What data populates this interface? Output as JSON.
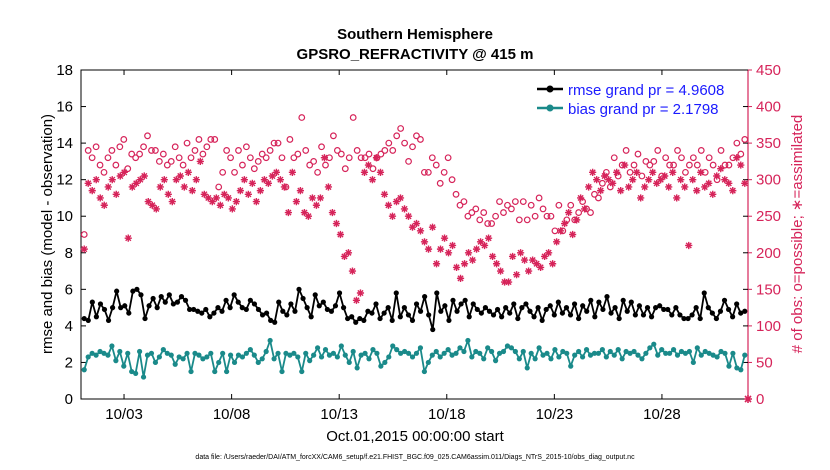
{
  "chart_data": {
    "type": "line",
    "title": "Southern Hemisphere",
    "subtitle": "GPSRO_REFRACTIVITY @ 415 m",
    "xlabel": "Oct.01,2015 00:00:00 start",
    "ylabel": "rmse and bias (model - observation)",
    "y2label": "# of obs: o=possible; ∗=assimilated",
    "xlim": [
      1.0,
      32.0
    ],
    "ylim": [
      0,
      18
    ],
    "y2lim": [
      0,
      450
    ],
    "x_ticks": [
      3,
      8,
      13,
      18,
      23,
      28
    ],
    "x_tick_labels": [
      "10/03",
      "10/08",
      "10/13",
      "10/18",
      "10/23",
      "10/28"
    ],
    "y_ticks": [
      0,
      2,
      4,
      6,
      8,
      10,
      12,
      14,
      16,
      18
    ],
    "y2_ticks": [
      0,
      50,
      100,
      150,
      200,
      250,
      300,
      350,
      400,
      450
    ],
    "legend_position": "top-right",
    "footnote": "data file: /Users/raeder/DAI/ATM_forcXX/CAM6_setup/f.e21.FHIST_BGC.f09_025.CAM6assim.011/Diags_NTrS_2015-10/obs_diag_output.nc",
    "colors": {
      "rmse": "#000000",
      "bias": "#1a8a8a",
      "obs": "#d6245a",
      "legend_text": "#1a1aff"
    },
    "series": [
      {
        "name": "rmse grand pr = 4.9608",
        "axis": "left",
        "values": [
          4.4,
          4.3,
          5.3,
          4.5,
          5.2,
          4.9,
          4.3,
          5.0,
          5.9,
          5.0,
          5.1,
          4.7,
          5.9,
          6.0,
          5.7,
          4.4,
          5.1,
          5.5,
          5.0,
          5.6,
          5.3,
          5.7,
          5.2,
          5.3,
          5.6,
          5.4,
          4.9,
          4.9,
          4.8,
          4.7,
          4.9,
          4.5,
          4.7,
          5.0,
          4.8,
          5.4,
          5.0,
          5.7,
          5.3,
          5.0,
          4.9,
          5.4,
          5.2,
          4.9,
          4.6,
          4.7,
          4.3,
          4.2,
          5.3,
          4.8,
          4.6,
          5.2,
          4.8,
          6.0,
          5.5,
          5.0,
          4.5,
          5.7,
          5.1,
          5.3,
          4.9,
          4.8,
          5.1,
          5.8,
          5.0,
          4.4,
          4.5,
          4.2,
          4.4,
          4.3,
          4.8,
          4.7,
          5.2,
          4.4,
          4.7,
          5.0,
          4.3,
          5.8,
          4.5,
          5.0,
          4.6,
          4.3,
          5.2,
          4.8,
          5.6,
          4.6,
          3.8,
          5.8,
          4.8,
          5.1,
          4.3,
          5.4,
          4.8,
          5.2,
          5.4,
          4.5,
          5.2,
          4.9,
          4.7,
          5.0,
          4.8,
          4.6,
          4.9,
          4.5,
          5.0,
          4.7,
          5.2,
          4.4,
          5.0,
          5.2,
          4.8,
          4.5,
          5.0,
          4.3,
          4.9,
          5.1,
          4.6,
          5.3,
          4.7,
          5.0,
          4.6,
          5.2,
          4.4,
          5.1,
          4.8,
          5.4,
          4.5,
          5.3,
          4.9,
          5.6,
          4.7,
          5.0,
          4.4,
          5.4,
          4.8,
          5.3,
          4.6,
          5.1,
          4.6,
          5.0,
          4.5,
          5.0,
          5.1,
          4.9,
          4.9,
          4.6,
          5.0,
          4.6,
          4.4,
          4.4,
          4.6,
          5.0,
          4.4,
          5.8,
          5.0,
          4.7,
          4.4,
          4.8,
          5.4,
          4.9,
          4.5,
          5.2,
          4.7,
          4.8
        ]
      },
      {
        "name": "bias grand pr = 2.1798",
        "axis": "left",
        "values": [
          1.6,
          2.3,
          2.5,
          2.4,
          2.6,
          2.5,
          2.4,
          2.9,
          2.1,
          2.6,
          1.8,
          2.5,
          1.5,
          1.4,
          2.6,
          1.2,
          2.4,
          2.5,
          2.0,
          2.3,
          2.7,
          2.5,
          2.4,
          1.9,
          2.3,
          2.2,
          2.5,
          1.5,
          2.5,
          2.4,
          2.2,
          2.3,
          2.5,
          1.5,
          2.0,
          2.5,
          1.5,
          2.4,
          2.0,
          2.4,
          2.3,
          2.5,
          2.7,
          2.4,
          2.0,
          2.2,
          2.6,
          3.2,
          2.2,
          2.5,
          1.5,
          2.5,
          2.4,
          2.5,
          2.3,
          1.5,
          2.5,
          2.1,
          2.4,
          2.8,
          2.3,
          2.7,
          2.4,
          2.5,
          2.3,
          2.9,
          2.4,
          2.0,
          2.6,
          1.7,
          2.4,
          2.5,
          2.2,
          2.7,
          2.5,
          1.8,
          2.0,
          2.3,
          2.9,
          2.7,
          2.5,
          2.6,
          2.5,
          2.3,
          2.5,
          2.8,
          1.5,
          2.0,
          2.4,
          2.6,
          2.3,
          2.5,
          2.7,
          2.4,
          2.5,
          2.8,
          2.6,
          3.2,
          2.3,
          2.6,
          2.5,
          2.2,
          2.8,
          2.6,
          2.1,
          2.5,
          2.6,
          2.9,
          2.8,
          2.6,
          2.2,
          2.6,
          1.7,
          2.5,
          2.2,
          2.8,
          2.4,
          2.5,
          2.2,
          2.7,
          2.3,
          2.6,
          2.5,
          1.8,
          2.4,
          2.6,
          2.3,
          2.7,
          2.4,
          2.5,
          2.5,
          2.7,
          2.3,
          2.6,
          2.4,
          2.7,
          2.2,
          2.6,
          2.5,
          2.6,
          2.4,
          2.2,
          2.5,
          2.8,
          3.0,
          2.4,
          2.7,
          2.5,
          2.5,
          2.7,
          2.4,
          2.6,
          2.5,
          2.6,
          2.0,
          2.8,
          2.4,
          2.6,
          2.5,
          2.4,
          2.3,
          2.6,
          2.5,
          1.8,
          2.5,
          1.7,
          1.6,
          2.4
        ]
      },
      {
        "name": "possible",
        "axis": "right",
        "marker": "o",
        "values": [
          225,
          340,
          330,
          345,
          320,
          310,
          330,
          340,
          320,
          345,
          355,
          315,
          335,
          330,
          335,
          345,
          360,
          340,
          340,
          325,
          335,
          320,
          325,
          345,
          330,
          320,
          350,
          330,
          340,
          355,
          335,
          345,
          355,
          355,
          290,
          310,
          340,
          330,
          310,
          340,
          320,
          345,
          330,
          315,
          325,
          335,
          330,
          340,
          350,
          350,
          330,
          290,
          355,
          330,
          335,
          385,
          340,
          320,
          325,
          310,
          345,
          320,
          330,
          360,
          340,
          335,
          315,
          330,
          385,
          340,
          330,
          330,
          335,
          315,
          330,
          335,
          340,
          350,
          340,
          360,
          370,
          350,
          325,
          345,
          360,
          355,
          310,
          310,
          330,
          320,
          295,
          310,
          330,
          300,
          280,
          265,
          270,
          250,
          255,
          260,
          245,
          255,
          240,
          240,
          250,
          270,
          255,
          265,
          260,
          270,
          245,
          270,
          245,
          265,
          250,
          275,
          260,
          250,
          250,
          230,
          265,
          230,
          245,
          265,
          245,
          255,
          270,
          260,
          255,
          280,
          275,
          295,
          310,
          290,
          330,
          305,
          320,
          340,
          310,
          320,
          335,
          305,
          325,
          320,
          325,
          340,
          305,
          330,
          320,
          320,
          340,
          330,
          310,
          320,
          330,
          320,
          340,
          310,
          330,
          320,
          300,
          340,
          320,
          320,
          330,
          350,
          335,
          355
        ]
      },
      {
        "name": "assimilated",
        "axis": "right",
        "marker": "*",
        "values": [
          205,
          295,
          285,
          300,
          275,
          265,
          290,
          300,
          280,
          305,
          310,
          220,
          290,
          295,
          300,
          305,
          270,
          265,
          260,
          290,
          300,
          280,
          270,
          300,
          305,
          290,
          310,
          285,
          300,
          325,
          280,
          275,
          270,
          275,
          265,
          280,
          275,
          260,
          270,
          285,
          300,
          280,
          295,
          270,
          285,
          300,
          295,
          305,
          310,
          300,
          290,
          255,
          310,
          270,
          285,
          255,
          250,
          275,
          265,
          275,
          330,
          290,
          255,
          240,
          225,
          195,
          200,
          175,
          135,
          145,
          310,
          320,
          300,
          330,
          310,
          280,
          265,
          250,
          270,
          275,
          260,
          250,
          235,
          240,
          230,
          215,
          205,
          235,
          185,
          205,
          220,
          200,
          210,
          180,
          165,
          185,
          200,
          190,
          205,
          215,
          210,
          220,
          195,
          185,
          175,
          160,
          160,
          195,
          170,
          200,
          190,
          175,
          190,
          185,
          180,
          195,
          200,
          185,
          215,
          230,
          240,
          255,
          225,
          245,
          275,
          260,
          290,
          310,
          300,
          285,
          305,
          300,
          295,
          310,
          285,
          320,
          290,
          300,
          310,
          275,
          290,
          300,
          310,
          295,
          300,
          305,
          290,
          310,
          275,
          300,
          290,
          210,
          300,
          285,
          310,
          290,
          295,
          280,
          305,
          315,
          300,
          295,
          285,
          330,
          320,
          295
        ]
      }
    ]
  }
}
